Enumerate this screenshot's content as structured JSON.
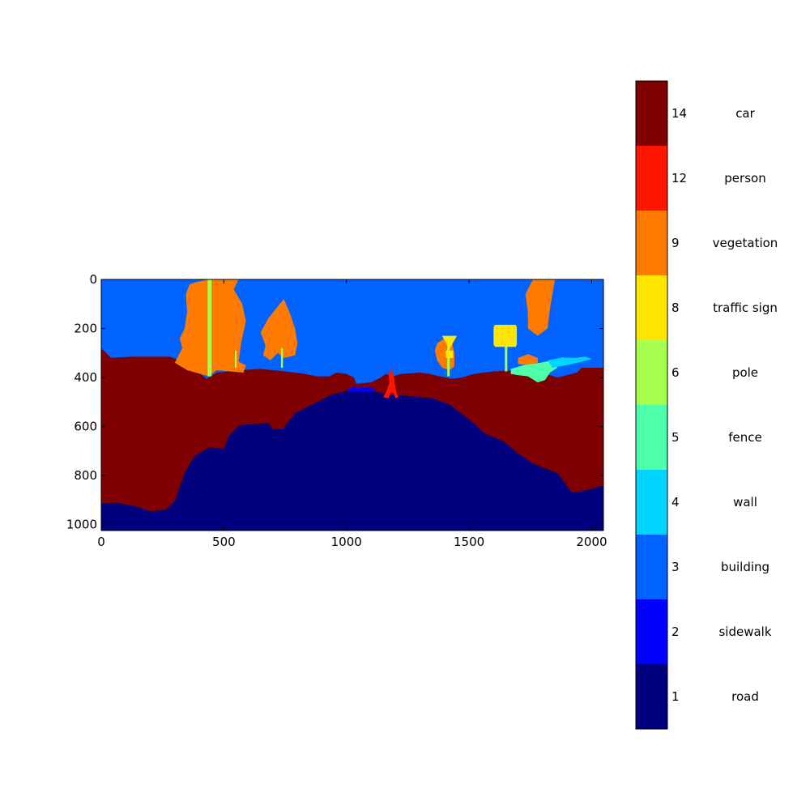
{
  "chart_data": {
    "type": "heatmap",
    "title": "",
    "xlabel": "",
    "ylabel": "",
    "xlim": [
      0,
      2048
    ],
    "ylim": [
      1024,
      0
    ],
    "x_ticks": [
      0,
      500,
      1000,
      1500,
      2000
    ],
    "y_ticks": [
      0,
      200,
      400,
      600,
      800,
      1000
    ],
    "colorbar": {
      "entries": [
        {
          "value": "1",
          "label": "road",
          "color": "#00007f"
        },
        {
          "value": "2",
          "label": "sidewalk",
          "color": "#0000ff"
        },
        {
          "value": "3",
          "label": "building",
          "color": "#0063ff"
        },
        {
          "value": "4",
          "label": "wall",
          "color": "#00d4ff"
        },
        {
          "value": "5",
          "label": "fence",
          "color": "#4effa9"
        },
        {
          "value": "6",
          "label": "pole",
          "color": "#a9ff4e"
        },
        {
          "value": "8",
          "label": "traffic sign",
          "color": "#ffe600"
        },
        {
          "value": "9",
          "label": "vegetation",
          "color": "#ff7a00"
        },
        {
          "value": "12",
          "label": "person",
          "color": "#ff1600"
        },
        {
          "value": "14",
          "label": "car",
          "color": "#7f0000"
        }
      ]
    },
    "regions": [
      {
        "label": "building",
        "color": "#0063ff",
        "points": [
          [
            0,
            0
          ],
          [
            2048,
            0
          ],
          [
            2048,
            1024
          ],
          [
            0,
            1024
          ]
        ]
      },
      {
        "label": "car",
        "color": "#7f0000",
        "points": [
          [
            0,
            280
          ],
          [
            40,
            320
          ],
          [
            120,
            315
          ],
          [
            280,
            315
          ],
          [
            330,
            335
          ],
          [
            390,
            375
          ],
          [
            430,
            405
          ],
          [
            470,
            380
          ],
          [
            560,
            370
          ],
          [
            650,
            365
          ],
          [
            750,
            375
          ],
          [
            830,
            385
          ],
          [
            880,
            395
          ],
          [
            930,
            395
          ],
          [
            960,
            380
          ],
          [
            1000,
            385
          ],
          [
            1030,
            400
          ],
          [
            1040,
            425
          ],
          [
            1100,
            420
          ],
          [
            1140,
            400
          ],
          [
            1160,
            385
          ],
          [
            1190,
            395
          ],
          [
            1220,
            385
          ],
          [
            1300,
            380
          ],
          [
            1340,
            385
          ],
          [
            1380,
            395
          ],
          [
            1430,
            405
          ],
          [
            1470,
            400
          ],
          [
            1520,
            385
          ],
          [
            1600,
            375
          ],
          [
            1700,
            370
          ],
          [
            1800,
            380
          ],
          [
            1860,
            400
          ],
          [
            1940,
            380
          ],
          [
            1960,
            360
          ],
          [
            2048,
            360
          ],
          [
            2048,
            1024
          ],
          [
            0,
            1024
          ]
        ]
      },
      {
        "label": "road",
        "color": "#00007f",
        "points": [
          [
            0,
            915
          ],
          [
            60,
            910
          ],
          [
            140,
            925
          ],
          [
            200,
            945
          ],
          [
            260,
            940
          ],
          [
            300,
            905
          ],
          [
            340,
            790
          ],
          [
            380,
            720
          ],
          [
            440,
            685
          ],
          [
            500,
            690
          ],
          [
            520,
            640
          ],
          [
            560,
            595
          ],
          [
            620,
            590
          ],
          [
            680,
            585
          ],
          [
            700,
            610
          ],
          [
            740,
            610
          ],
          [
            790,
            545
          ],
          [
            860,
            510
          ],
          [
            940,
            470
          ],
          [
            1000,
            455
          ],
          [
            1060,
            450
          ],
          [
            1110,
            455
          ],
          [
            1160,
            470
          ],
          [
            1250,
            475
          ],
          [
            1350,
            485
          ],
          [
            1420,
            510
          ],
          [
            1460,
            540
          ],
          [
            1500,
            570
          ],
          [
            1560,
            625
          ],
          [
            1640,
            660
          ],
          [
            1700,
            710
          ],
          [
            1760,
            750
          ],
          [
            1860,
            790
          ],
          [
            1920,
            870
          ],
          [
            2000,
            855
          ],
          [
            2048,
            840
          ],
          [
            2048,
            1024
          ],
          [
            0,
            1024
          ]
        ]
      },
      {
        "label": "sidewalk",
        "color": "#0000ff",
        "points": [
          [
            1000,
            450
          ],
          [
            1020,
            440
          ],
          [
            1100,
            440
          ],
          [
            1120,
            450
          ],
          [
            1100,
            458
          ],
          [
            1020,
            458
          ]
        ]
      },
      {
        "label": "vegetation",
        "color": "#ff7a00",
        "points": [
          [
            360,
            20
          ],
          [
            390,
            10
          ],
          [
            440,
            0
          ],
          [
            560,
            0
          ],
          [
            540,
            40
          ],
          [
            575,
            100
          ],
          [
            590,
            170
          ],
          [
            570,
            260
          ],
          [
            560,
            335
          ],
          [
            590,
            350
          ],
          [
            580,
            380
          ],
          [
            470,
            370
          ],
          [
            440,
            395
          ],
          [
            350,
            370
          ],
          [
            300,
            340
          ],
          [
            330,
            280
          ],
          [
            320,
            240
          ],
          [
            340,
            200
          ],
          [
            350,
            130
          ],
          [
            345,
            60
          ]
        ]
      },
      {
        "label": "vegetation",
        "color": "#ff7a00",
        "points": [
          [
            650,
            215
          ],
          [
            680,
            160
          ],
          [
            720,
            110
          ],
          [
            745,
            80
          ],
          [
            770,
            140
          ],
          [
            790,
            200
          ],
          [
            800,
            260
          ],
          [
            790,
            310
          ],
          [
            745,
            320
          ],
          [
            720,
            300
          ],
          [
            690,
            330
          ],
          [
            660,
            310
          ],
          [
            670,
            270
          ]
        ]
      },
      {
        "label": "vegetation",
        "color": "#ff7a00",
        "points": [
          [
            1370,
            260
          ],
          [
            1400,
            240
          ],
          [
            1430,
            255
          ],
          [
            1440,
            300
          ],
          [
            1440,
            355
          ],
          [
            1420,
            370
          ],
          [
            1390,
            360
          ],
          [
            1370,
            330
          ],
          [
            1360,
            290
          ]
        ]
      },
      {
        "label": "vegetation",
        "color": "#ff7a00",
        "points": [
          [
            1730,
            60
          ],
          [
            1750,
            20
          ],
          [
            1760,
            0
          ],
          [
            1850,
            0
          ],
          [
            1840,
            60
          ],
          [
            1830,
            120
          ],
          [
            1820,
            200
          ],
          [
            1780,
            230
          ],
          [
            1740,
            200
          ],
          [
            1740,
            140
          ]
        ]
      },
      {
        "label": "vegetation",
        "color": "#ff7a00",
        "points": [
          [
            1700,
            320
          ],
          [
            1740,
            305
          ],
          [
            1780,
            320
          ],
          [
            1780,
            340
          ],
          [
            1740,
            350
          ],
          [
            1700,
            345
          ]
        ]
      },
      {
        "label": "fence",
        "color": "#4effa9",
        "points": [
          [
            1670,
            365
          ],
          [
            1720,
            350
          ],
          [
            1790,
            340
          ],
          [
            1840,
            330
          ],
          [
            1860,
            360
          ],
          [
            1830,
            380
          ],
          [
            1810,
            410
          ],
          [
            1780,
            420
          ],
          [
            1740,
            395
          ],
          [
            1700,
            390
          ],
          [
            1670,
            385
          ]
        ]
      },
      {
        "label": "wall",
        "color": "#00d4ff",
        "points": [
          [
            1820,
            330
          ],
          [
            1880,
            318
          ],
          [
            1930,
            320
          ],
          [
            1975,
            315
          ],
          [
            2000,
            325
          ],
          [
            1960,
            335
          ],
          [
            1920,
            345
          ],
          [
            1870,
            355
          ],
          [
            1840,
            360
          ]
        ]
      },
      {
        "label": "pole",
        "color": "#a9ff4e",
        "points": [
          [
            434,
            0
          ],
          [
            450,
            0
          ],
          [
            450,
            395
          ],
          [
            434,
            395
          ]
        ]
      },
      {
        "label": "pole",
        "color": "#a9ff4e",
        "points": [
          [
            545,
            290
          ],
          [
            552,
            290
          ],
          [
            552,
            360
          ],
          [
            545,
            360
          ]
        ]
      },
      {
        "label": "pole",
        "color": "#a9ff4e",
        "points": [
          [
            733,
            280
          ],
          [
            741,
            280
          ],
          [
            741,
            360
          ],
          [
            733,
            360
          ]
        ]
      },
      {
        "label": "pole",
        "color": "#a9ff4e",
        "points": [
          [
            1411,
            230
          ],
          [
            1421,
            230
          ],
          [
            1421,
            395
          ],
          [
            1411,
            395
          ]
        ]
      },
      {
        "label": "pole",
        "color": "#a9ff4e",
        "points": [
          [
            1646,
            260
          ],
          [
            1656,
            260
          ],
          [
            1656,
            375
          ],
          [
            1646,
            375
          ]
        ]
      },
      {
        "label": "traffic sign",
        "color": "#ffe600",
        "points": [
          [
            1390,
            230
          ],
          [
            1450,
            230
          ],
          [
            1420,
            285
          ]
        ]
      },
      {
        "label": "traffic sign",
        "color": "#ffe600",
        "points": [
          [
            1405,
            290
          ],
          [
            1435,
            290
          ],
          [
            1435,
            320
          ],
          [
            1405,
            320
          ]
        ]
      },
      {
        "label": "traffic sign",
        "color": "#ffe600",
        "points": [
          [
            1605,
            185
          ],
          [
            1690,
            185
          ],
          [
            1695,
            195
          ],
          [
            1695,
            265
          ],
          [
            1690,
            275
          ],
          [
            1605,
            275
          ],
          [
            1600,
            265
          ],
          [
            1600,
            195
          ]
        ]
      },
      {
        "label": "person",
        "color": "#ff1600",
        "points": [
          [
            1162,
            460
          ],
          [
            1175,
            420
          ],
          [
            1172,
            390
          ],
          [
            1182,
            365
          ],
          [
            1192,
            385
          ],
          [
            1196,
            420
          ],
          [
            1205,
            465
          ],
          [
            1212,
            480
          ],
          [
            1200,
            485
          ],
          [
            1190,
            460
          ],
          [
            1180,
            465
          ],
          [
            1170,
            485
          ],
          [
            1150,
            480
          ]
        ]
      }
    ]
  }
}
